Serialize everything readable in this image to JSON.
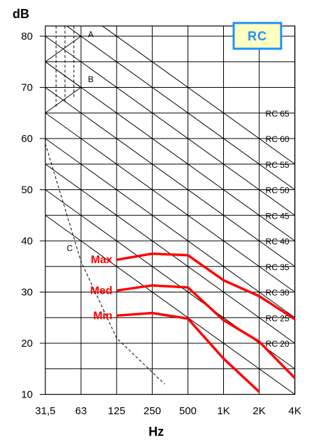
{
  "chart_data": {
    "type": "line",
    "ylabel": "dB",
    "xlabel": "Hz",
    "badge": "RC",
    "x_ticks": [
      "31,5",
      "63",
      "125",
      "250",
      "500",
      "1K",
      "2K",
      "4K"
    ],
    "y_ticks": [
      10,
      20,
      30,
      40,
      50,
      60,
      70,
      80
    ],
    "ylim": [
      10,
      82
    ],
    "grid": true,
    "series": [
      {
        "name": "Max",
        "x": [
          2.0,
          3.0,
          4.0,
          5.0,
          6.0,
          7.0
        ],
        "values": [
          36.3,
          37.5,
          37.2,
          32.3,
          29.2,
          24.7
        ]
      },
      {
        "name": "Med",
        "x": [
          2.0,
          3.0,
          4.0,
          5.0,
          6.0,
          7.0
        ],
        "values": [
          30.3,
          31.3,
          30.9,
          24.5,
          20.3,
          13.2
        ]
      },
      {
        "name": "Min",
        "x": [
          2.0,
          3.0,
          4.0,
          5.0,
          6.0
        ],
        "values": [
          25.4,
          25.9,
          24.8,
          17.0,
          10.5
        ]
      }
    ],
    "rc_curves": [
      {
        "label": "RC 65",
        "value": 65
      },
      {
        "label": "RC 60",
        "value": 60
      },
      {
        "label": "RC 55",
        "value": 55
      },
      {
        "label": "RC 50",
        "value": 50
      },
      {
        "label": "RC 45",
        "value": 45
      },
      {
        "label": "RC 40",
        "value": 40
      },
      {
        "label": "RC 35",
        "value": 35
      },
      {
        "label": "RC 30",
        "value": 30
      },
      {
        "label": "RC 25",
        "value": 25
      },
      {
        "label": "RC 20",
        "value": 20
      }
    ],
    "region_labels": [
      "A",
      "B",
      "C"
    ],
    "colors": {
      "series": "#ff0000",
      "badge_border": "#1e90ff",
      "badge_text": "#1e90ff",
      "badge_fill": "#ffffc0",
      "grid": "#000000"
    }
  }
}
